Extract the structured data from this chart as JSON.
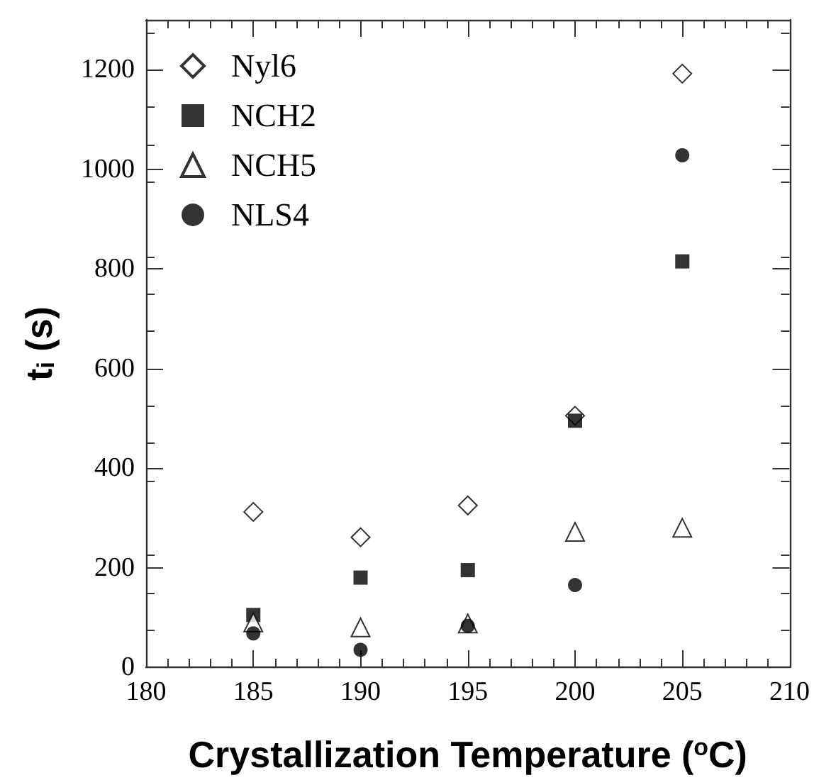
{
  "chart_data": {
    "type": "scatter",
    "xlabel": "Crystallization Temperature ($^{o}$C)",
    "ylabel": "t$_{i}$ (s)",
    "x": [
      185,
      190,
      195,
      200,
      205
    ],
    "series": [
      {
        "name": "Nyl6",
        "color": "#000000",
        "marker": "diamond",
        "values": [
          312,
          261,
          325,
          505,
          1192
        ]
      },
      {
        "name": "NCH2",
        "color": "#000000",
        "marker": "square",
        "values": [
          105,
          180,
          195,
          495,
          815
        ]
      },
      {
        "name": "NCH5",
        "color": "#000000",
        "marker": "triangle",
        "values": [
          90,
          80,
          88,
          272,
          280
        ]
      },
      {
        "name": "NLS4",
        "color": "#000000",
        "marker": "circle",
        "values": [
          68,
          35,
          83,
          165,
          1028
        ]
      }
    ],
    "xlim": [
      180,
      210
    ],
    "xticks": [
      180,
      185,
      190,
      195,
      200,
      205,
      210
    ],
    "ylim": [
      0,
      1300
    ],
    "yticks": [
      0,
      200,
      400,
      600,
      800,
      1000,
      1200
    ],
    "grid": false,
    "legend": "top left"
  }
}
